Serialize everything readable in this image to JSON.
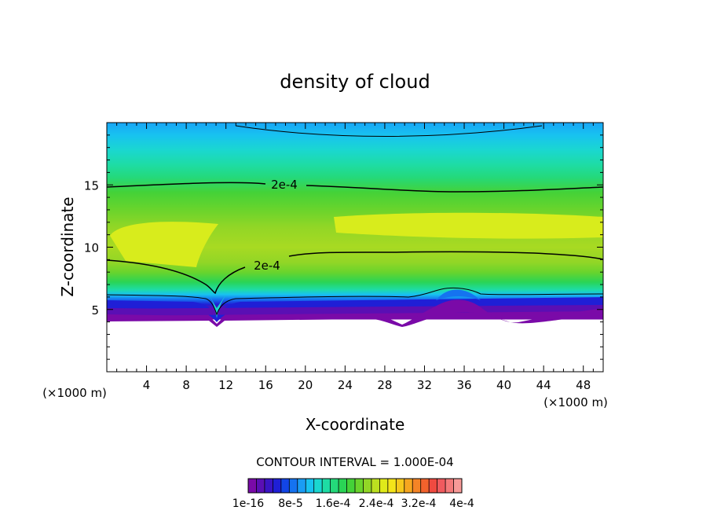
{
  "chart_data": {
    "type": "heatmap",
    "title": "density of cloud",
    "xlabel": "X-coordinate",
    "ylabel": "Z-coordinate",
    "xunit_left": "(×1000 m)",
    "xunit_right": "(×1000 m)",
    "xlim": [
      0,
      50
    ],
    "ylim": [
      0,
      20
    ],
    "xticks": [
      "4",
      "8",
      "12",
      "16",
      "20",
      "24",
      "28",
      "32",
      "36",
      "40",
      "44",
      "48"
    ],
    "yticks": [
      "5",
      "10",
      "15"
    ],
    "contour_interval_label": "CONTOUR INTERVAL = 1.000E-04",
    "contour_labels": [
      "2e-4",
      "2e-4"
    ],
    "colorbar": {
      "labels": [
        "1e-16",
        "8e-5",
        "1.6e-4",
        "2.4e-4",
        "3.2e-4",
        "4e-4"
      ],
      "colors": [
        "#7a0aa8",
        "#5a0fb4",
        "#3a14c4",
        "#1f1fd6",
        "#1245e6",
        "#1573f0",
        "#1a9cf4",
        "#18c2f0",
        "#1ad7d0",
        "#1edca4",
        "#24d97a",
        "#2ad455",
        "#44d238",
        "#6ad42c",
        "#92d626",
        "#bce020",
        "#e0ea1a",
        "#f4e41a",
        "#f6c81c",
        "#f6a620",
        "#f48426",
        "#f2622c",
        "#f04a40",
        "#f05a5e",
        "#f47a7a",
        "#f89a98"
      ]
    },
    "grid": false,
    "legend": "bottom"
  }
}
